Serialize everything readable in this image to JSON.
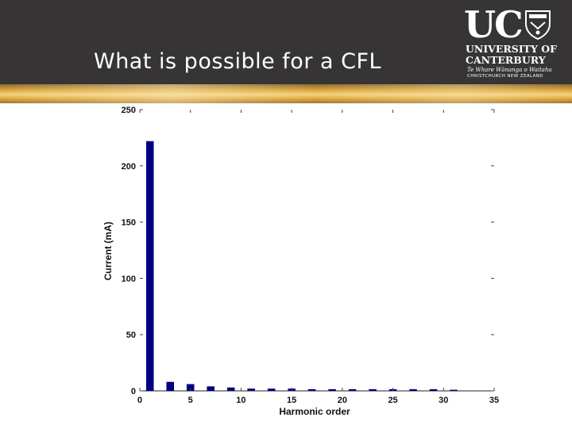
{
  "slide": {
    "title": "What is possible for a CFL"
  },
  "logo": {
    "uc": "UC",
    "line1": "UNIVERSITY OF",
    "line2": "CANTERBURY",
    "line3": "Te Whare Wānanga o Waitaha",
    "line4": "CHRISTCHURCH NEW ZEALAND"
  },
  "colors": {
    "header": "#363435",
    "bar": "#000080"
  },
  "chart_data": {
    "type": "bar",
    "xlabel": "Harmonic order",
    "ylabel": "Current (mA)",
    "xlim": [
      0,
      35
    ],
    "ylim": [
      0,
      250
    ],
    "xticks": [
      0,
      5,
      10,
      15,
      20,
      25,
      30,
      35
    ],
    "yticks": [
      0,
      50,
      100,
      150,
      200,
      250
    ],
    "x": [
      1,
      3,
      5,
      7,
      9,
      11,
      13,
      15,
      17,
      19,
      21,
      23,
      25,
      27,
      29,
      31
    ],
    "values": [
      222,
      8,
      6,
      4,
      3,
      2,
      2,
      2,
      1.5,
      1.5,
      1.5,
      1.5,
      1.5,
      1.5,
      1.5,
      1
    ],
    "grid": false
  }
}
